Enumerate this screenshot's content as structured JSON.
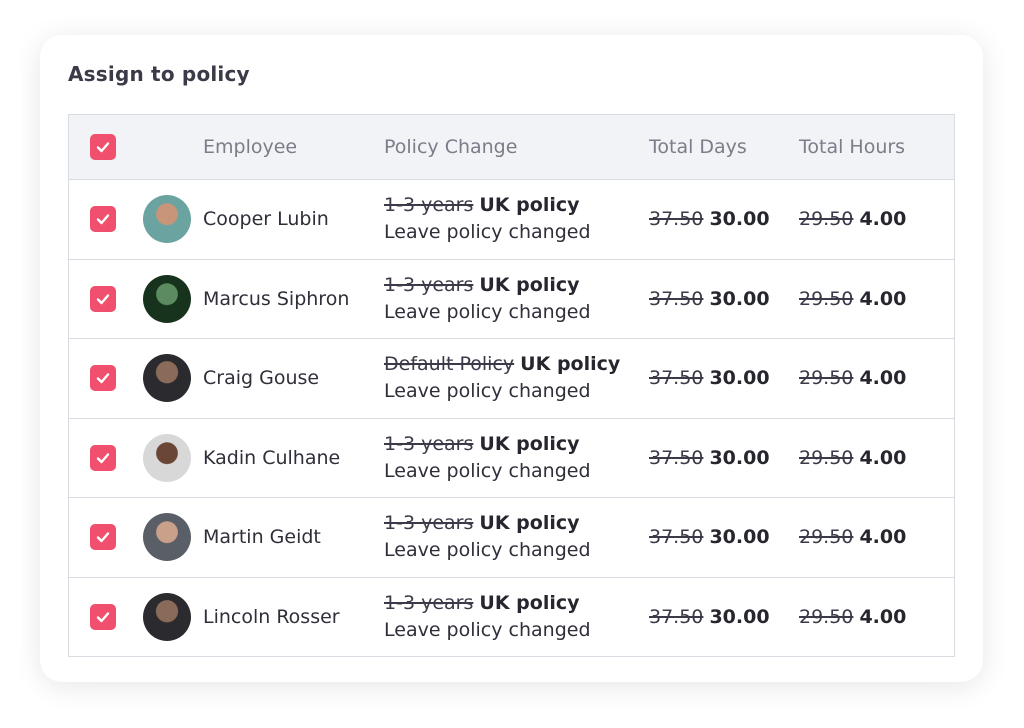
{
  "title": "Assign to policy",
  "table": {
    "headers": [
      "Employee",
      "Policy Change",
      "Total Days",
      "Total Hours"
    ],
    "rows": [
      {
        "name": "Cooper Lubin",
        "old_policy": "1-3 years",
        "new_policy": "UK policy",
        "note": "Leave policy changed",
        "old_days": "37.50",
        "new_days": "30.00",
        "old_hours": "29.50",
        "new_hours": "4.00"
      },
      {
        "name": "Marcus Siphron",
        "old_policy": "1-3 years",
        "new_policy": "UK policy",
        "note": "Leave policy changed",
        "old_days": "37.50",
        "new_days": "30.00",
        "old_hours": "29.50",
        "new_hours": "4.00"
      },
      {
        "name": "Craig Gouse",
        "old_policy": "Default Policy",
        "new_policy": "UK policy",
        "note": "Leave policy changed",
        "old_days": "37.50",
        "new_days": "30.00",
        "old_hours": "29.50",
        "new_hours": "4.00"
      },
      {
        "name": "Kadin Culhane",
        "old_policy": "1-3 years",
        "new_policy": "UK policy",
        "note": "Leave policy changed",
        "old_days": "37.50",
        "new_days": "30.00",
        "old_hours": "29.50",
        "new_hours": "4.00"
      },
      {
        "name": "Martin Geidt",
        "old_policy": "1-3 years",
        "new_policy": "UK policy",
        "note": "Leave policy changed",
        "old_days": "37.50",
        "new_days": "30.00",
        "old_hours": "29.50",
        "new_hours": "4.00"
      },
      {
        "name": "Lincoln Rosser",
        "old_policy": "1-3 years",
        "new_policy": "UK policy",
        "note": "Leave policy changed",
        "old_days": "37.50",
        "new_days": "30.00",
        "old_hours": "29.50",
        "new_hours": "4.00"
      }
    ]
  }
}
